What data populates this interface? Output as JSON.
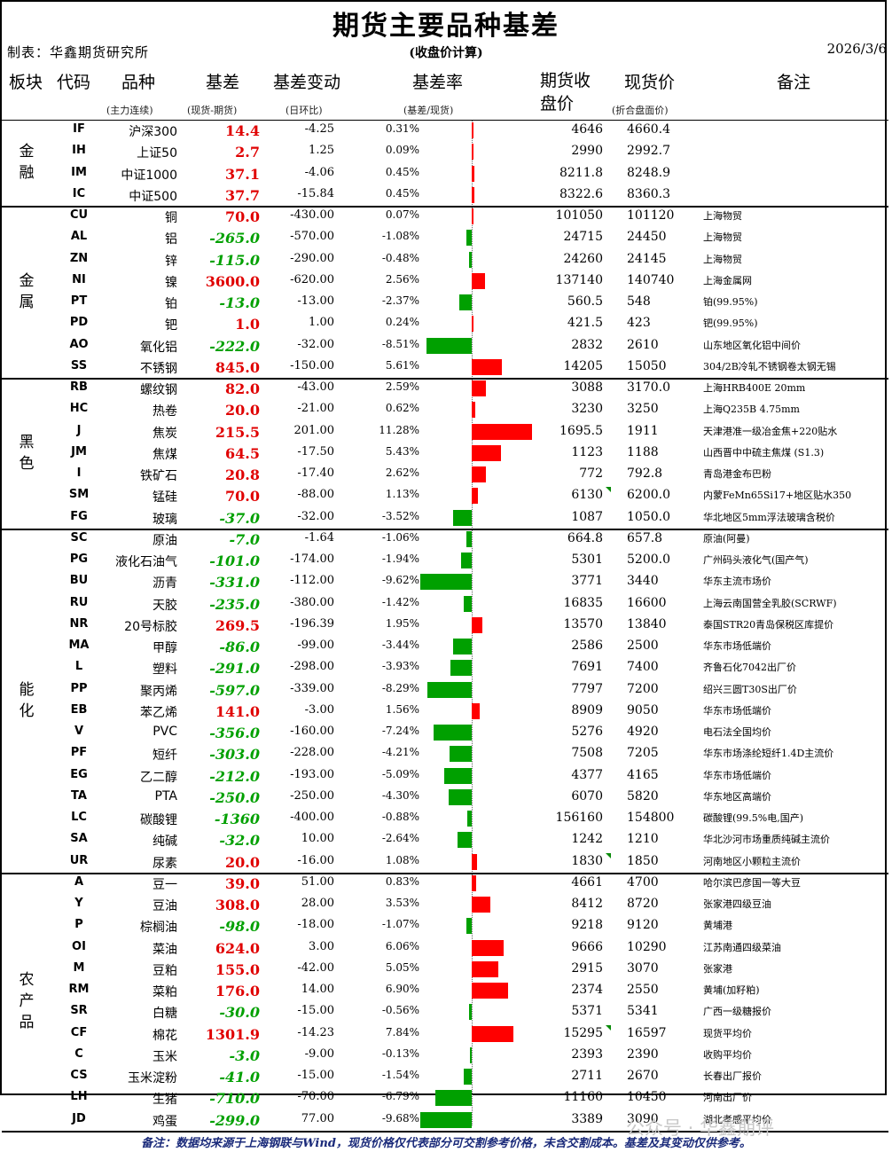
{
  "title": "期货主要品种基差",
  "maker": "制表：华鑫期货研究所",
  "subtitle": "(收盘价计算)",
  "date": "2026/3/6",
  "headers": {
    "sector": "板块",
    "code": "代码",
    "name": "品种",
    "basis": "基差",
    "change": "基差变动",
    "rate": "基差率",
    "futures": "期货收盘价",
    "spot": "现货价",
    "note": "备注",
    "name_sub": "(主力连续)",
    "basis_sub": "(现货-期货)",
    "change_sub": "(日环比)",
    "rate_sub": "(基差/现货)",
    "spot_sub": "(折合盘面价)"
  },
  "sections": [
    {
      "name": "金融",
      "rows": [
        {
          "code": "IF",
          "name": "沪深300",
          "basis": "14.4",
          "change": "-4.25",
          "rate": "0.31%",
          "rate_value": 0.31,
          "futures": "4646",
          "spot": "4660.4",
          "note": ""
        },
        {
          "code": "IH",
          "name": "上证50",
          "basis": "2.7",
          "change": "1.25",
          "rate": "0.09%",
          "rate_value": 0.09,
          "futures": "2990",
          "spot": "2992.7",
          "note": ""
        },
        {
          "code": "IM",
          "name": "中证1000",
          "basis": "37.1",
          "change": "-4.06",
          "rate": "0.45%",
          "rate_value": 0.45,
          "futures": "8211.8",
          "spot": "8248.9",
          "note": ""
        },
        {
          "code": "IC",
          "name": "中证500",
          "basis": "37.7",
          "change": "-15.84",
          "rate": "0.45%",
          "rate_value": 0.45,
          "futures": "8322.6",
          "spot": "8360.3",
          "note": ""
        }
      ]
    },
    {
      "name": "金属",
      "rows": [
        {
          "code": "CU",
          "name": "铜",
          "basis": "70.0",
          "change": "-430.00",
          "rate": "0.07%",
          "rate_value": 0.07,
          "futures": "101050",
          "spot": "101120",
          "note": "上海物贸"
        },
        {
          "code": "AL",
          "name": "铝",
          "basis": "-265.0",
          "change": "-570.00",
          "rate": "-1.08%",
          "rate_value": -1.08,
          "futures": "24715",
          "spot": "24450",
          "note": "上海物贸"
        },
        {
          "code": "ZN",
          "name": "锌",
          "basis": "-115.0",
          "change": "-290.00",
          "rate": "-0.48%",
          "rate_value": -0.48,
          "futures": "24260",
          "spot": "24145",
          "note": "上海物贸"
        },
        {
          "code": "NI",
          "name": "镍",
          "basis": "3600.0",
          "change": "-620.00",
          "rate": "2.56%",
          "rate_value": 2.56,
          "futures": "137140",
          "spot": "140740",
          "note": "上海金属网"
        },
        {
          "code": "PT",
          "name": "铂",
          "basis": "-13.0",
          "change": "-13.00",
          "rate": "-2.37%",
          "rate_value": -2.37,
          "futures": "560.5",
          "spot": "548",
          "note": "铂(99.95%)"
        },
        {
          "code": "PD",
          "name": "钯",
          "basis": "1.0",
          "change": "1.00",
          "rate": "0.24%",
          "rate_value": 0.24,
          "futures": "421.5",
          "spot": "423",
          "note": "钯(99.95%)"
        },
        {
          "code": "AO",
          "name": "氧化铝",
          "basis": "-222.0",
          "change": "-32.00",
          "rate": "-8.51%",
          "rate_value": -8.51,
          "futures": "2832",
          "spot": "2610",
          "note": "山东地区氧化铝中间价"
        },
        {
          "code": "SS",
          "name": "不锈钢",
          "basis": "845.0",
          "change": "-150.00",
          "rate": "5.61%",
          "rate_value": 5.61,
          "futures": "14205",
          "spot": "15050",
          "note": "304/2B冷轧不锈钢卷太钢无锡"
        }
      ]
    },
    {
      "name": "黑色",
      "rows": [
        {
          "code": "RB",
          "name": "螺纹钢",
          "basis": "82.0",
          "change": "-43.00",
          "rate": "2.59%",
          "rate_value": 2.59,
          "futures": "3088",
          "spot": "3170.0",
          "note": "上海HRB400E 20mm"
        },
        {
          "code": "HC",
          "name": "热卷",
          "basis": "20.0",
          "change": "-21.00",
          "rate": "0.62%",
          "rate_value": 0.62,
          "futures": "3230",
          "spot": "3250",
          "note": "上海Q235B 4.75mm"
        },
        {
          "code": "J",
          "name": "焦炭",
          "basis": "215.5",
          "change": "201.00",
          "rate": "11.28%",
          "rate_value": 11.28,
          "futures": "1695.5",
          "spot": "1911",
          "note": "天津港准一级冶金焦+220贴水"
        },
        {
          "code": "JM",
          "name": "焦煤",
          "basis": "64.5",
          "change": "-17.50",
          "rate": "5.43%",
          "rate_value": 5.43,
          "futures": "1123",
          "spot": "1188",
          "note": "山西晋中中硫主焦煤 (S1.3)"
        },
        {
          "code": "I",
          "name": "铁矿石",
          "basis": "20.8",
          "change": "-17.40",
          "rate": "2.62%",
          "rate_value": 2.62,
          "futures": "772",
          "spot": "792.8",
          "note": "青岛港金布巴粉"
        },
        {
          "code": "SM",
          "name": "锰硅",
          "basis": "70.0",
          "change": "-88.00",
          "rate": "1.13%",
          "rate_value": 1.13,
          "futures": "6130",
          "spot": "6200.0",
          "note": "内蒙FeMn65Si17+地区贴水350",
          "flag": true
        },
        {
          "code": "FG",
          "name": "玻璃",
          "basis": "-37.0",
          "change": "-32.00",
          "rate": "-3.52%",
          "rate_value": -3.52,
          "futures": "1087",
          "spot": "1050.0",
          "note": "华北地区5mm浮法玻璃含税价"
        }
      ]
    },
    {
      "name": "能化",
      "rows": [
        {
          "code": "SC",
          "name": "原油",
          "basis": "-7.0",
          "change": "-1.64",
          "rate": "-1.06%",
          "rate_value": -1.06,
          "futures": "664.8",
          "spot": "657.8",
          "note": "原油(阿曼)"
        },
        {
          "code": "PG",
          "name": "液化石油气",
          "basis": "-101.0",
          "change": "-174.00",
          "rate": "-1.94%",
          "rate_value": -1.94,
          "futures": "5301",
          "spot": "5200.0",
          "note": "广州码头液化气(国产气)"
        },
        {
          "code": "BU",
          "name": "沥青",
          "basis": "-331.0",
          "change": "-112.00",
          "rate": "-9.62%",
          "rate_value": -9.62,
          "futures": "3771",
          "spot": "3440",
          "note": "华东主流市场价"
        },
        {
          "code": "RU",
          "name": "天胶",
          "basis": "-235.0",
          "change": "-380.00",
          "rate": "-1.42%",
          "rate_value": -1.42,
          "futures": "16835",
          "spot": "16600",
          "note": "上海云南国营全乳胶(SCRWF)"
        },
        {
          "code": "NR",
          "name": "20号标胶",
          "basis": "269.5",
          "change": "-196.39",
          "rate": "1.95%",
          "rate_value": 1.95,
          "futures": "13570",
          "spot": "13840",
          "note": "泰国STR20青岛保税区库提价"
        },
        {
          "code": "MA",
          "name": "甲醇",
          "basis": "-86.0",
          "change": "-99.00",
          "rate": "-3.44%",
          "rate_value": -3.44,
          "futures": "2586",
          "spot": "2500",
          "note": "华东市场低端价"
        },
        {
          "code": "L",
          "name": "塑料",
          "basis": "-291.0",
          "change": "-298.00",
          "rate": "-3.93%",
          "rate_value": -3.93,
          "futures": "7691",
          "spot": "7400",
          "note": "齐鲁石化7042出厂价"
        },
        {
          "code": "PP",
          "name": "聚丙烯",
          "basis": "-597.0",
          "change": "-339.00",
          "rate": "-8.29%",
          "rate_value": -8.29,
          "futures": "7797",
          "spot": "7200",
          "note": "绍兴三圆T30S出厂价"
        },
        {
          "code": "EB",
          "name": "苯乙烯",
          "basis": "141.0",
          "change": "-3.00",
          "rate": "1.56%",
          "rate_value": 1.56,
          "futures": "8909",
          "spot": "9050",
          "note": "华东市场低端价"
        },
        {
          "code": "V",
          "name": "PVC",
          "basis": "-356.0",
          "change": "-160.00",
          "rate": "-7.24%",
          "rate_value": -7.24,
          "futures": "5276",
          "spot": "4920",
          "note": "电石法全国均价"
        },
        {
          "code": "PF",
          "name": "短纤",
          "basis": "-303.0",
          "change": "-228.00",
          "rate": "-4.21%",
          "rate_value": -4.21,
          "futures": "7508",
          "spot": "7205",
          "note": "华东市场涤纶短纤1.4D主流价"
        },
        {
          "code": "EG",
          "name": "乙二醇",
          "basis": "-212.0",
          "change": "-193.00",
          "rate": "-5.09%",
          "rate_value": -5.09,
          "futures": "4377",
          "spot": "4165",
          "note": "华东市场低端价"
        },
        {
          "code": "TA",
          "name": "PTA",
          "basis": "-250.0",
          "change": "-250.00",
          "rate": "-4.30%",
          "rate_value": -4.3,
          "futures": "6070",
          "spot": "5820",
          "note": "华东地区高端价"
        },
        {
          "code": "LC",
          "name": "碳酸锂",
          "basis": "-1360",
          "change": "-400.00",
          "rate": "-0.88%",
          "rate_value": -0.88,
          "futures": "156160",
          "spot": "154800",
          "note": "碳酸锂(99.5%电,国产)"
        },
        {
          "code": "SA",
          "name": "纯碱",
          "basis": "-32.0",
          "change": "10.00",
          "rate": "-2.64%",
          "rate_value": -2.64,
          "futures": "1242",
          "spot": "1210",
          "note": "华北沙河市场重质纯碱主流价"
        },
        {
          "code": "UR",
          "name": "尿素",
          "basis": "20.0",
          "change": "-16.00",
          "rate": "1.08%",
          "rate_value": 1.08,
          "futures": "1830",
          "spot": "1850",
          "note": "河南地区小颗粒主流价",
          "flag": true
        }
      ]
    },
    {
      "name": "农产品",
      "rows": [
        {
          "code": "A",
          "name": "豆一",
          "basis": "39.0",
          "change": "51.00",
          "rate": "0.83%",
          "rate_value": 0.83,
          "futures": "4661",
          "spot": "4700",
          "note": "哈尔滨巴彦国一等大豆"
        },
        {
          "code": "Y",
          "name": "豆油",
          "basis": "308.0",
          "change": "28.00",
          "rate": "3.53%",
          "rate_value": 3.53,
          "futures": "8412",
          "spot": "8720",
          "note": "张家港四级豆油"
        },
        {
          "code": "P",
          "name": "棕榈油",
          "basis": "-98.0",
          "change": "-18.00",
          "rate": "-1.07%",
          "rate_value": -1.07,
          "futures": "9218",
          "spot": "9120",
          "note": "黄埔港"
        },
        {
          "code": "OI",
          "name": "菜油",
          "basis": "624.0",
          "change": "3.00",
          "rate": "6.06%",
          "rate_value": 6.06,
          "futures": "9666",
          "spot": "10290",
          "note": "江苏南通四级菜油"
        },
        {
          "code": "M",
          "name": "豆粕",
          "basis": "155.0",
          "change": "-42.00",
          "rate": "5.05%",
          "rate_value": 5.05,
          "futures": "2915",
          "spot": "3070",
          "note": "张家港"
        },
        {
          "code": "RM",
          "name": "菜粕",
          "basis": "176.0",
          "change": "14.00",
          "rate": "6.90%",
          "rate_value": 6.9,
          "futures": "2374",
          "spot": "2550",
          "note": "黄埔(加籽粕)"
        },
        {
          "code": "SR",
          "name": "白糖",
          "basis": "-30.0",
          "change": "-15.00",
          "rate": "-0.56%",
          "rate_value": -0.56,
          "futures": "5371",
          "spot": "5341",
          "note": "广西一级糖报价"
        },
        {
          "code": "CF",
          "name": "棉花",
          "basis": "1301.9",
          "change": "-14.23",
          "rate": "7.84%",
          "rate_value": 7.84,
          "futures": "15295",
          "spot": "16597",
          "note": "现货平均价",
          "flag": true
        },
        {
          "code": "C",
          "name": "玉米",
          "basis": "-3.0",
          "change": "-9.00",
          "rate": "-0.13%",
          "rate_value": -0.13,
          "futures": "2393",
          "spot": "2390",
          "note": "收购平均价"
        },
        {
          "code": "CS",
          "name": "玉米淀粉",
          "basis": "-41.0",
          "change": "-15.00",
          "rate": "-1.54%",
          "rate_value": -1.54,
          "futures": "2711",
          "spot": "2670",
          "note": "长春出厂报价"
        },
        {
          "code": "LH",
          "name": "生猪",
          "basis": "-710.0",
          "change": "-70.00",
          "rate": "-6.79%",
          "rate_value": -6.79,
          "futures": "11160",
          "spot": "10450",
          "note": "河南出厂价"
        },
        {
          "code": "JD",
          "name": "鸡蛋",
          "basis": "-299.0",
          "change": "77.00",
          "rate": "-9.68%",
          "rate_value": -9.68,
          "futures": "3389",
          "spot": "3090",
          "note": "湖北孝感平均价"
        }
      ]
    }
  ],
  "footer": "备注：数据均来源于上海钢联与Wind，现货价格仅代表部分可交割参考价格，未含交割成本。基差及其变动仅供参考。",
  "watermark": "公众号 · 华鑫期评",
  "colors": {
    "positive": "#ff0000",
    "negative": "#00a000",
    "footer_text": "#1a2a7a"
  }
}
